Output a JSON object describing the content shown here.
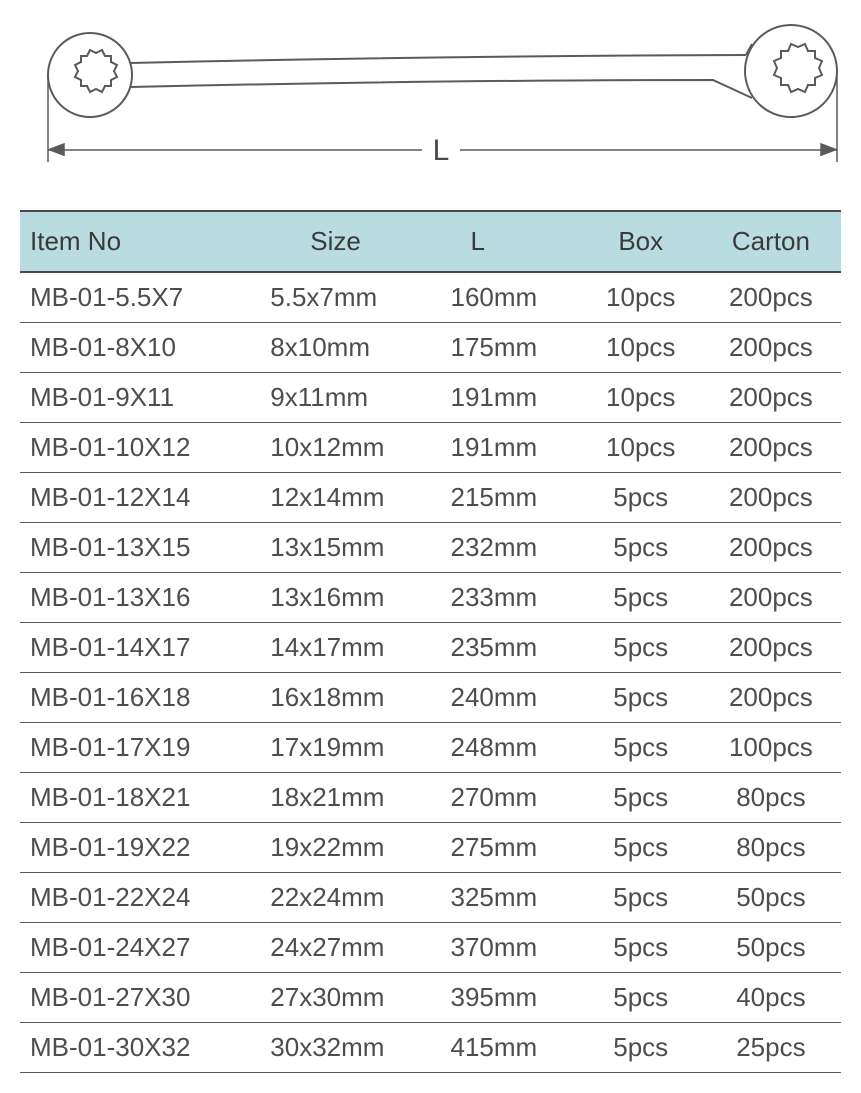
{
  "diagram": {
    "label": "L",
    "stroke": "#5a5a5a",
    "stroke_width": 2,
    "label_fontsize": 30,
    "label_color": "#4a4a4a"
  },
  "table": {
    "header_bg": "#b8dce0",
    "border_color": "#4a4a4a",
    "row_border_color": "#5a5a5a",
    "text_color": "#4d4d4d",
    "font_size": 26,
    "columns": [
      "Item No",
      "Size",
      "L",
      "Box",
      "Carton"
    ],
    "rows": [
      [
        "MB-01-5.5X7",
        "5.5x7mm",
        "160mm",
        "10pcs",
        "200pcs"
      ],
      [
        "MB-01-8X10",
        "8x10mm",
        "175mm",
        "10pcs",
        "200pcs"
      ],
      [
        "MB-01-9X11",
        "9x11mm",
        "191mm",
        "10pcs",
        "200pcs"
      ],
      [
        "MB-01-10X12",
        "10x12mm",
        "191mm",
        "10pcs",
        "200pcs"
      ],
      [
        "MB-01-12X14",
        "12x14mm",
        "215mm",
        "5pcs",
        "200pcs"
      ],
      [
        "MB-01-13X15",
        "13x15mm",
        "232mm",
        "5pcs",
        "200pcs"
      ],
      [
        "MB-01-13X16",
        "13x16mm",
        "233mm",
        "5pcs",
        "200pcs"
      ],
      [
        "MB-01-14X17",
        "14x17mm",
        "235mm",
        "5pcs",
        "200pcs"
      ],
      [
        "MB-01-16X18",
        "16x18mm",
        "240mm",
        "5pcs",
        "200pcs"
      ],
      [
        "MB-01-17X19",
        "17x19mm",
        "248mm",
        "5pcs",
        "100pcs"
      ],
      [
        "MB-01-18X21",
        "18x21mm",
        "270mm",
        "5pcs",
        "80pcs"
      ],
      [
        "MB-01-19X22",
        "19x22mm",
        "275mm",
        "5pcs",
        "80pcs"
      ],
      [
        "MB-01-22X24",
        "22x24mm",
        "325mm",
        "5pcs",
        "50pcs"
      ],
      [
        "MB-01-24X27",
        "24x27mm",
        "370mm",
        "5pcs",
        "50pcs"
      ],
      [
        "MB-01-27X30",
        "27x30mm",
        "395mm",
        "5pcs",
        "40pcs"
      ],
      [
        "MB-01-30X32",
        "30x32mm",
        "415mm",
        "5pcs",
        "25pcs"
      ]
    ]
  }
}
